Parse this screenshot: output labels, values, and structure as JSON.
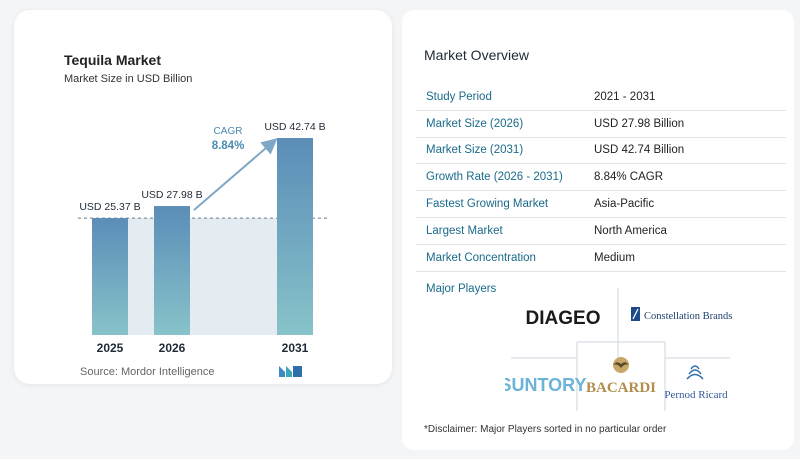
{
  "chart": {
    "title": "Tequila Market",
    "subtitle": "Market Size in USD Billion",
    "source": "Source:  Mordor Intelligence",
    "cagr_label": "CAGR",
    "cagr_value": "8.84%"
  },
  "chart_data": {
    "type": "bar",
    "title": "Tequila Market",
    "subtitle": "Market Size in USD Billion",
    "categories": [
      "2025",
      "2026",
      "2031"
    ],
    "values": [
      25.37,
      27.98,
      42.74
    ],
    "data_labels": [
      "USD 25.37 B",
      "USD 27.98 B",
      "USD 42.74 B"
    ],
    "ylim": [
      0,
      45
    ],
    "annotation": {
      "label": "CAGR",
      "value": "8.84%"
    },
    "colors": {
      "bar_top": "#5b8db8",
      "bar_bottom": "#87c3c9",
      "band": "#e4ecf2",
      "arrow": "#7fa8c6",
      "cagr_text": "#4a8ab0"
    }
  },
  "overview": {
    "title": "Market Overview",
    "rows": [
      {
        "label": "Study Period",
        "value": "2021 - 2031"
      },
      {
        "label": "Market Size (2026)",
        "value": "USD 27.98 Billion"
      },
      {
        "label": "Market Size (2031)",
        "value": "USD 42.74 Billion"
      },
      {
        "label": "Growth Rate (2026 - 2031)",
        "value": "8.84% CAGR"
      },
      {
        "label": "Fastest Growing Market",
        "value": "Asia-Pacific"
      },
      {
        "label": "Largest Market",
        "value": "North America"
      },
      {
        "label": "Market Concentration",
        "value": "Medium"
      }
    ]
  },
  "players": {
    "title": "Major Players",
    "logos": {
      "diageo": "DIAGEO",
      "constellation": "Constellation Brands",
      "suntory": "SUNTORY",
      "bacardi": "BACARDI",
      "pernod": "Pernod Ricard"
    }
  },
  "disclaimer": "*Disclaimer: Major Players sorted in no particular order"
}
